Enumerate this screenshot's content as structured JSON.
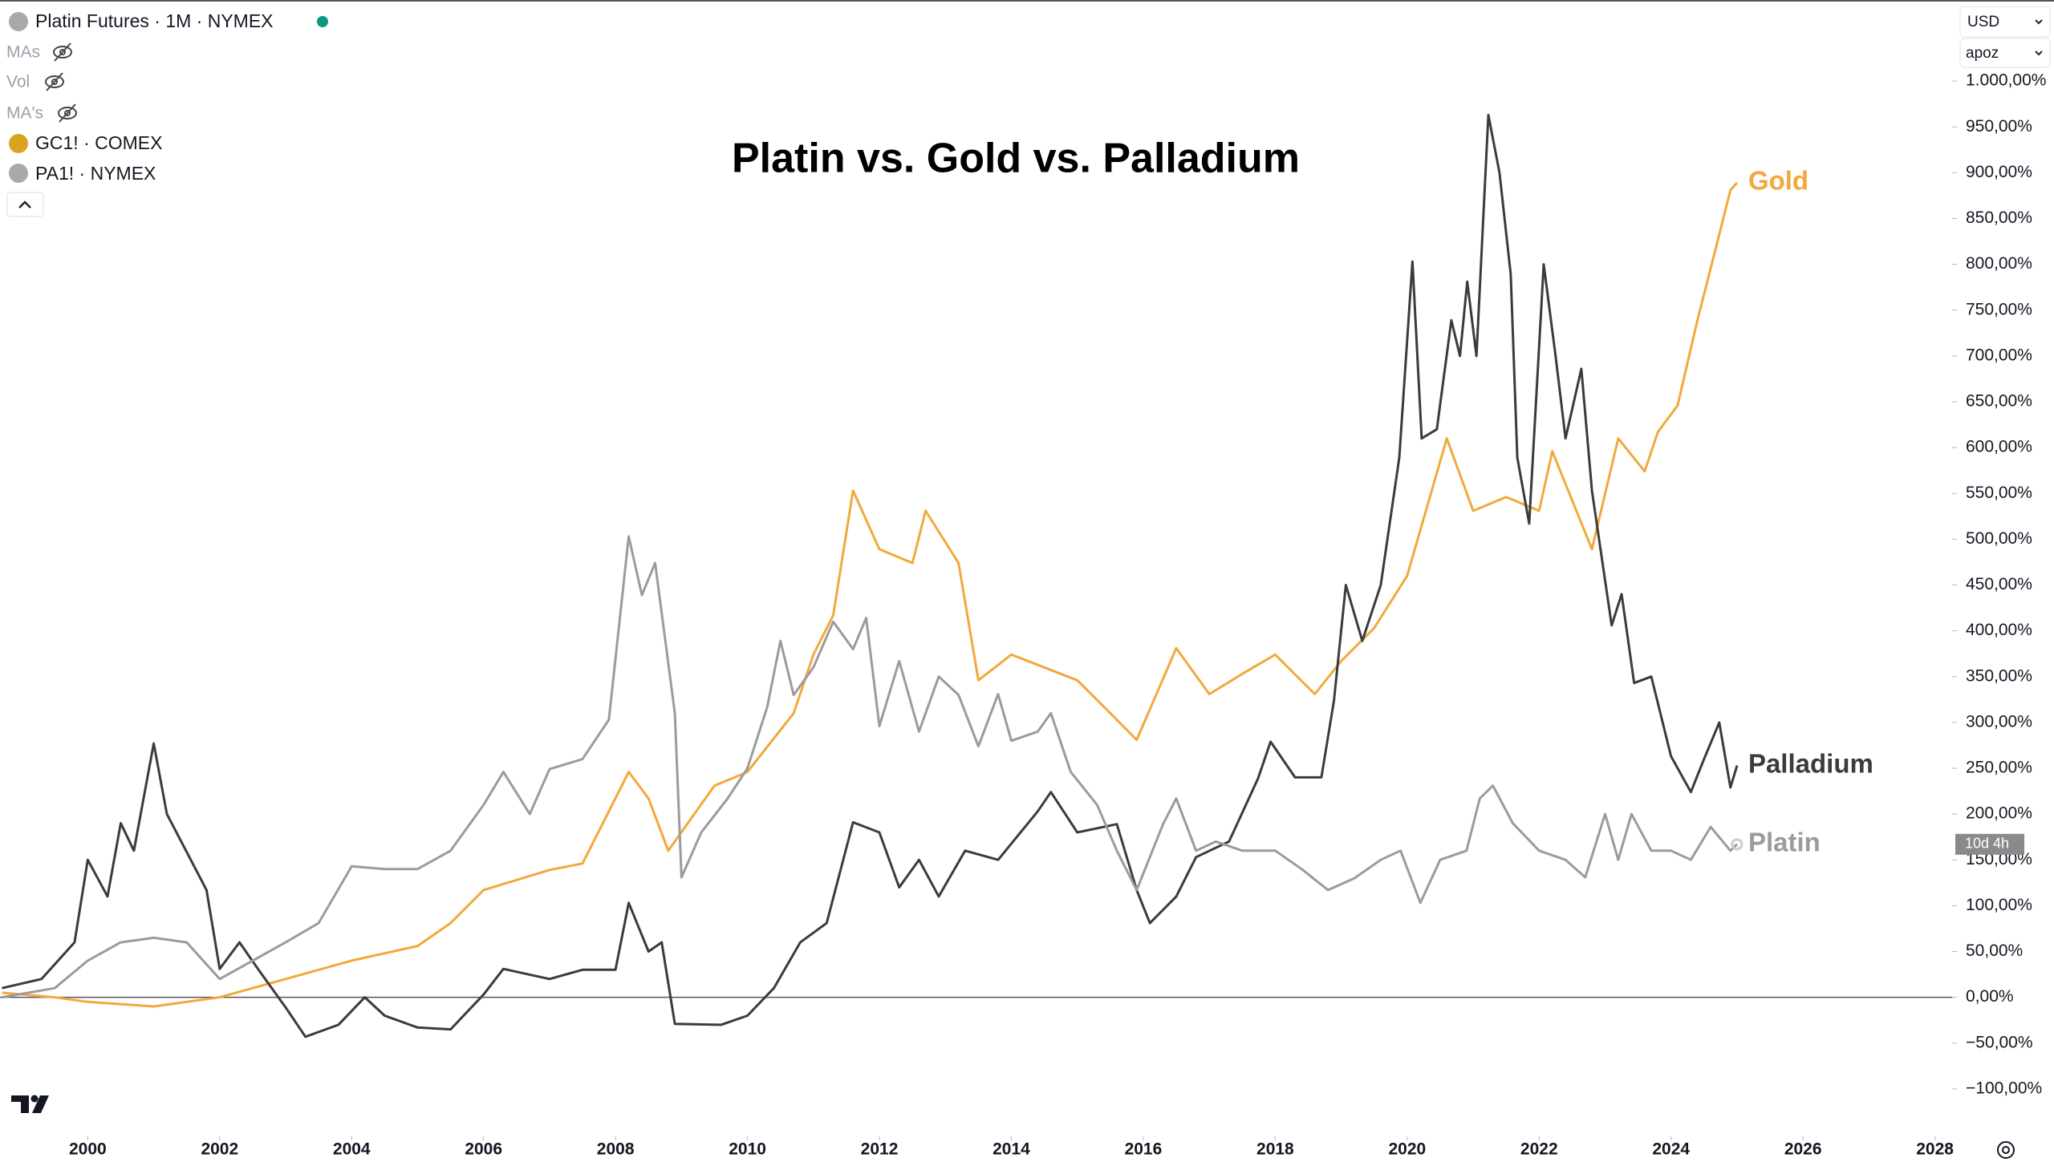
{
  "chart_data": {
    "type": "line",
    "title": "Platin vs. Gold vs. Palladium",
    "legend": [
      "Platin Futures · 1M · NYMEX",
      "MAs",
      "Vol",
      "MA's",
      "GC1! · COMEX",
      "PA1! · NYMEX"
    ],
    "currency": "USD",
    "scale_mode": "apoz",
    "countdown": "10d 4h",
    "grid": false,
    "xlim": [
      1998.67,
      2028.26
    ],
    "xticks": [
      2000,
      2002,
      2004,
      2006,
      2008,
      2010,
      2012,
      2014,
      2016,
      2018,
      2020,
      2022,
      2024,
      2026,
      2028
    ],
    "ylim": [
      -150,
      1085
    ],
    "yticks": [
      {
        "value": -100,
        "label": "−100,00%"
      },
      {
        "value": -50,
        "label": "−50,00%"
      },
      {
        "value": 0,
        "label": "0,00%"
      },
      {
        "value": 50,
        "label": "50,00%"
      },
      {
        "value": 100,
        "label": "100,00%"
      },
      {
        "value": 150,
        "label": "150,00%"
      },
      {
        "value": 200,
        "label": "200,00%"
      },
      {
        "value": 250,
        "label": "250,00%"
      },
      {
        "value": 300,
        "label": "300,00%"
      },
      {
        "value": 350,
        "label": "350,00%"
      },
      {
        "value": 400,
        "label": "400,00%"
      },
      {
        "value": 450,
        "label": "450,00%"
      },
      {
        "value": 500,
        "label": "500,00%"
      },
      {
        "value": 550,
        "label": "550,00%"
      },
      {
        "value": 600,
        "label": "600,00%"
      },
      {
        "value": 650,
        "label": "650,00%"
      },
      {
        "value": 700,
        "label": "700,00%"
      },
      {
        "value": 750,
        "label": "750,00%"
      },
      {
        "value": 800,
        "label": "800,00%"
      },
      {
        "value": 850,
        "label": "850,00%"
      },
      {
        "value": 900,
        "label": "900,00%"
      },
      {
        "value": 950,
        "label": "950,00%"
      },
      {
        "value": 1000,
        "label": "1.000,00%"
      }
    ],
    "series": [
      {
        "name": "Gold",
        "color": "#f2a93b",
        "x": [
          1998.7,
          1999.5,
          2000,
          2001,
          2002,
          2003,
          2004,
          2005,
          2005.5,
          2006,
          2007,
          2007.5,
          2008.2,
          2008.5,
          2008.8,
          2009.5,
          2010,
          2010.7,
          2011,
          2011.3,
          2011.6,
          2012,
          2012.5,
          2012.7,
          2013.2,
          2013.5,
          2014,
          2014.5,
          2015,
          2015.5,
          2015.9,
          2016.5,
          2017,
          2017.5,
          2018,
          2018.6,
          2019,
          2019.5,
          2020,
          2020.6,
          2021,
          2021.5,
          2022,
          2022.2,
          2022.8,
          2023.2,
          2023.6,
          2023.8,
          2024.1,
          2024.4,
          2024.7,
          2024.9,
          2025
        ],
        "values": [
          5,
          0,
          -5,
          -10,
          0,
          20,
          40,
          56,
          81,
          117,
          139,
          146,
          246,
          217,
          160,
          231,
          246,
          310,
          374,
          417,
          553,
          489,
          474,
          531,
          474,
          346,
          374,
          360,
          346,
          310,
          281,
          381,
          331,
          353,
          374,
          331,
          367,
          403,
          460,
          610,
          531,
          546,
          531,
          596,
          489,
          610,
          574,
          617,
          646,
          739,
          824,
          881,
          889
        ]
      },
      {
        "name": "Palladium",
        "color": "#3b3b3d",
        "x": [
          1998.7,
          1999.3,
          1999.8,
          2000,
          2000.3,
          2000.5,
          2000.7,
          2001,
          2001.2,
          2001.8,
          2002,
          2002.3,
          2002.6,
          2003,
          2003.3,
          2003.8,
          2004.2,
          2004.5,
          2005,
          2005.5,
          2006,
          2006.3,
          2007,
          2007.5,
          2008,
          2008.2,
          2008.5,
          2008.7,
          2008.9,
          2009.6,
          2010,
          2010.4,
          2010.8,
          2011.2,
          2011.6,
          2012,
          2012.3,
          2012.6,
          2012.9,
          2013.3,
          2013.8,
          2014.4,
          2014.6,
          2015,
          2015.6,
          2015.9,
          2016.1,
          2016.5,
          2016.8,
          2017.3,
          2017.74,
          2017.93,
          2018.3,
          2018.7,
          2018.89,
          2019.07,
          2019.32,
          2019.6,
          2019.88,
          2020.08,
          2020.22,
          2020.45,
          2020.67,
          2020.8,
          2020.91,
          2021.05,
          2021.23,
          2021.4,
          2021.57,
          2021.67,
          2021.85,
          2022.07,
          2022.25,
          2022.4,
          2022.64,
          2022.8,
          2023.1,
          2023.25,
          2023.44,
          2023.7,
          2024,
          2024.3,
          2024.5,
          2024.73,
          2024.9,
          2025
        ],
        "values": [
          10,
          20,
          60,
          150,
          110,
          190,
          160,
          277,
          200,
          117,
          31,
          60,
          29,
          -11,
          -43,
          -30,
          0,
          -20,
          -33,
          -35,
          3,
          31,
          20,
          30,
          30,
          103,
          50,
          60,
          -29,
          -30,
          -20,
          10,
          60,
          81,
          191,
          180,
          120,
          150,
          110,
          160,
          150,
          203,
          224,
          180,
          189,
          117,
          81,
          110,
          153,
          170,
          239,
          279,
          240,
          240,
          324,
          450,
          389,
          450,
          589,
          803,
          610,
          620,
          739,
          700,
          781,
          700,
          963,
          900,
          789,
          589,
          517,
          800,
          700,
          610,
          686,
          553,
          406,
          440,
          343,
          350,
          263,
          224,
          260,
          300,
          229,
          253
        ]
      },
      {
        "name": "Platin",
        "color": "#9b9b9b",
        "x": [
          1998.7,
          1999.5,
          2000,
          2000.5,
          2001,
          2001.5,
          2002,
          2002.5,
          2003,
          2003.5,
          2004,
          2004.5,
          2005,
          2005.5,
          2006,
          2006.3,
          2006.7,
          2007,
          2007.5,
          2007.9,
          2008.2,
          2008.4,
          2008.6,
          2008.9,
          2009,
          2009.3,
          2009.7,
          2010,
          2010.3,
          2010.5,
          2010.7,
          2011,
          2011.3,
          2011.6,
          2011.8,
          2012,
          2012.3,
          2012.6,
          2012.9,
          2013.2,
          2013.5,
          2013.8,
          2014,
          2014.4,
          2014.6,
          2014.9,
          2015.3,
          2015.6,
          2015.9,
          2016.3,
          2016.5,
          2016.8,
          2017.1,
          2017.5,
          2018,
          2018.4,
          2018.8,
          2019.2,
          2019.6,
          2019.9,
          2020.2,
          2020.5,
          2020.9,
          2021.1,
          2021.3,
          2021.6,
          2022,
          2022.4,
          2022.7,
          2023,
          2023.2,
          2023.4,
          2023.7,
          2024,
          2024.3,
          2024.6,
          2024.9,
          2025
        ],
        "values": [
          0,
          10,
          40,
          60,
          65,
          60,
          20,
          40,
          60,
          81,
          143,
          140,
          140,
          160,
          210,
          246,
          200,
          249,
          260,
          303,
          503,
          439,
          474,
          310,
          131,
          180,
          217,
          250,
          317,
          389,
          330,
          360,
          410,
          380,
          414,
          296,
          367,
          290,
          350,
          330,
          274,
          331,
          280,
          290,
          310,
          246,
          210,
          160,
          117,
          189,
          217,
          160,
          170,
          160,
          160,
          140,
          117,
          130,
          150,
          160,
          103,
          150,
          160,
          217,
          231,
          190,
          160,
          150,
          131,
          200,
          150,
          200,
          160,
          160,
          150,
          186,
          160,
          167
        ]
      }
    ]
  }
}
